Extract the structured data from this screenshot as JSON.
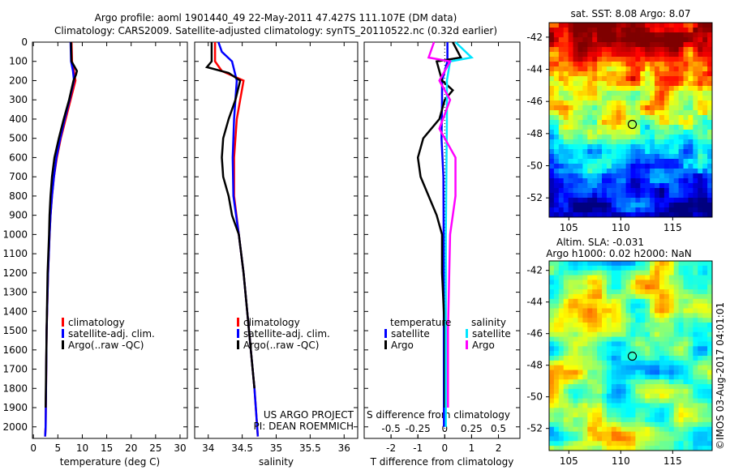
{
  "title_line1": "Argo profile: aoml 1901440_49 22-May-2011 47.427S 111.107E (DM data)",
  "title_line2": "Climatology: CARS2009. Satellite-adjusted climatology: synTS_20110522.nc (0.32d earlier)",
  "credit": "US ARGO PROJECT",
  "pi": "PI: DEAN ROEMMICH",
  "watermark": "©IMOS 03-Aug-2017 04:01:01",
  "colors": {
    "climatology": "#ff0000",
    "satellite": "#0000ff",
    "argo": "#000000",
    "s_satellite": "#00e5ff",
    "s_argo": "#ff00ff"
  },
  "chart_data": [
    {
      "type": "line",
      "id": "temperature",
      "xlabel": "temperature (deg C)",
      "ylabel": "",
      "xlim": [
        -0.2,
        31.5
      ],
      "ylim": [
        2060,
        0
      ],
      "xticks": [
        0,
        5,
        10,
        15,
        20,
        25,
        30
      ],
      "yticks": [
        0,
        100,
        200,
        300,
        400,
        500,
        600,
        700,
        800,
        900,
        1000,
        1100,
        1200,
        1300,
        1400,
        1500,
        1600,
        1700,
        1800,
        1900,
        2000
      ],
      "legend": [
        "climatology",
        "satellite-adj. clim.",
        "Argo(..raw -QC)"
      ],
      "series": [
        {
          "name": "climatology",
          "color": "#ff0000",
          "depth": [
            0,
            100,
            150,
            200,
            300,
            400,
            500,
            600,
            700,
            800,
            900,
            1000,
            1200,
            1500,
            2000,
            2050
          ],
          "values": [
            7.8,
            7.9,
            8.3,
            8.6,
            7.6,
            6.6,
            5.6,
            4.8,
            4.2,
            3.8,
            3.5,
            3.3,
            3.0,
            2.7,
            2.5,
            2.4
          ]
        },
        {
          "name": "satellite-adj. clim.",
          "color": "#0000ff",
          "depth": [
            0,
            100,
            150,
            200,
            300,
            400,
            500,
            600,
            700,
            800,
            900,
            1000,
            1200,
            1500,
            2000,
            2050
          ],
          "values": [
            7.6,
            7.7,
            8.1,
            8.3,
            7.4,
            6.4,
            5.5,
            4.7,
            4.2,
            3.8,
            3.5,
            3.3,
            3.0,
            2.7,
            2.5,
            2.4
          ]
        },
        {
          "name": "Argo(..raw -QC)",
          "color": "#000000",
          "depth": [
            0,
            100,
            150,
            170,
            200,
            300,
            400,
            500,
            600,
            700,
            800,
            900,
            1000,
            1200,
            1500,
            1900
          ],
          "values": [
            7.7,
            7.8,
            8.9,
            8.7,
            8.2,
            7.3,
            6.2,
            5.2,
            4.3,
            3.8,
            3.5,
            3.3,
            3.2,
            2.9,
            2.7,
            2.5
          ]
        }
      ]
    },
    {
      "type": "line",
      "id": "salinity",
      "xlabel": "salinity",
      "xlim": [
        33.8,
        36.2
      ],
      "ylim": [
        2060,
        0
      ],
      "xticks": [
        34,
        34.5,
        35,
        35.5,
        36
      ],
      "legend": [
        "climatology",
        "satellite-adj. clim.",
        "Argo(..raw -QC)"
      ],
      "series": [
        {
          "name": "climatology",
          "color": "#ff0000",
          "depth": [
            0,
            100,
            150,
            200,
            300,
            400,
            600,
            800,
            1000,
            1200,
            1500,
            1800,
            2050
          ],
          "values": [
            34.1,
            34.1,
            34.2,
            34.52,
            34.47,
            34.42,
            34.38,
            34.38,
            34.45,
            34.52,
            34.6,
            34.68,
            34.73
          ]
        },
        {
          "name": "satellite-adj. clim.",
          "color": "#0000ff",
          "depth": [
            0,
            50,
            100,
            200,
            300,
            400,
            600,
            800,
            1000,
            1200,
            1500,
            1800,
            2050
          ],
          "values": [
            34.15,
            34.2,
            34.35,
            34.42,
            34.4,
            34.38,
            34.36,
            34.37,
            34.45,
            34.52,
            34.6,
            34.68,
            34.73
          ]
        },
        {
          "name": "Argo(..raw -QC)",
          "color": "#000000",
          "depth": [
            0,
            100,
            130,
            160,
            200,
            300,
            400,
            500,
            600,
            700,
            800,
            900,
            1000,
            1200,
            1500,
            1800
          ],
          "values": [
            34.05,
            34.05,
            33.98,
            34.3,
            34.47,
            34.4,
            34.3,
            34.22,
            34.2,
            34.22,
            34.3,
            34.35,
            34.45,
            34.52,
            34.6,
            34.68
          ]
        }
      ]
    },
    {
      "type": "line",
      "id": "difference",
      "xlabel": "T difference from climatology",
      "x2label": "S difference from climatology",
      "xlim": [
        -3,
        2.8
      ],
      "x2lim": [
        -0.75,
        0.7
      ],
      "ylim": [
        2060,
        0
      ],
      "xticks": [
        -2,
        -1,
        0,
        1,
        2
      ],
      "x2ticks": [
        "-0.5",
        "-0.25",
        "0",
        "0.25",
        "0.5"
      ],
      "x2tickvals": [
        -0.5,
        -0.25,
        0,
        0.25,
        0.5
      ],
      "legend_t_title": "temperature",
      "legend_s_title": "salinity",
      "legend_t": [
        "satellite",
        "Argo"
      ],
      "legend_s": [
        "satellite",
        "Argo"
      ],
      "series": [
        {
          "name": "T satellite",
          "axis": "T",
          "color": "#0000ff",
          "depth": [
            0,
            100,
            200,
            300,
            500,
            700,
            1000,
            2000
          ],
          "values": [
            0.1,
            0.1,
            -0.1,
            -0.1,
            -0.12,
            -0.05,
            -0.04,
            -0.03
          ]
        },
        {
          "name": "T Argo",
          "axis": "T",
          "color": "#000000",
          "depth": [
            0,
            80,
            100,
            200,
            250,
            300,
            400,
            450,
            500,
            600,
            700,
            800,
            900,
            1000,
            1200,
            1500,
            1900
          ],
          "values": [
            0.3,
            0.6,
            -0.3,
            -0.1,
            0.3,
            0,
            -0.2,
            -0.5,
            -0.8,
            -1.0,
            -0.9,
            -0.6,
            -0.3,
            -0.1,
            -0.1,
            0,
            0
          ]
        },
        {
          "name": "S satellite",
          "axis": "S",
          "color": "#00e5ff",
          "depth": [
            0,
            80,
            100,
            200,
            400,
            1000,
            2000
          ],
          "values": [
            0.1,
            0.25,
            0.05,
            0.02,
            0.02,
            0.01,
            0.01
          ]
        },
        {
          "name": "S Argo",
          "axis": "S",
          "color": "#ff00ff",
          "depth": [
            0,
            80,
            100,
            200,
            300,
            450,
            500,
            600,
            800,
            1000,
            1500,
            1900
          ],
          "values": [
            -0.1,
            -0.15,
            0.05,
            -0.05,
            0.05,
            -0.05,
            0,
            0.1,
            0.1,
            0.05,
            0.03,
            0.03
          ]
        }
      ]
    },
    {
      "type": "heatmap",
      "id": "sst-map",
      "title": "sat. SST: 8.08 Argo: 8.07",
      "xticks": [
        105,
        110,
        115
      ],
      "yticks": [
        -42,
        -44,
        -46,
        -48,
        -50,
        -52
      ],
      "xlim": [
        103.1,
        118.8
      ],
      "ylim": [
        -53.2,
        -41.1
      ],
      "marker": [
        111.107,
        -47.427
      ]
    },
    {
      "type": "heatmap",
      "id": "sla-map",
      "title": "Altim. SLA: -0.031",
      "subtitle": "Argo h1000: 0.02 h2000: NaN",
      "xticks": [
        105,
        110,
        115
      ],
      "yticks": [
        -42,
        -44,
        -46,
        -48,
        -50,
        -52
      ],
      "xlim": [
        103.1,
        118.8
      ],
      "ylim": [
        -53.4,
        -41.4
      ],
      "marker": [
        111.107,
        -47.427
      ]
    }
  ]
}
